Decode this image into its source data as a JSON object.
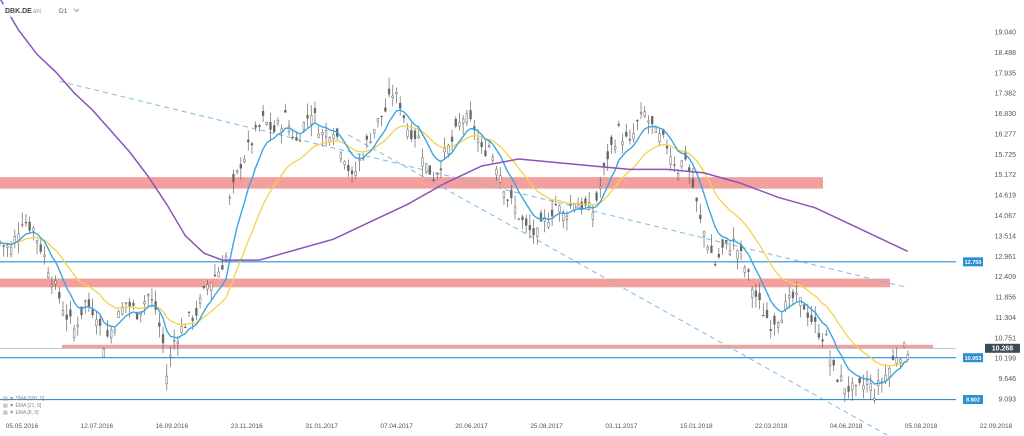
{
  "toolbar": {
    "symbol": "DBK.DE",
    "chart_type": "ahi",
    "timeframe": "D1",
    "chevron_icon": "chevron-down-icon"
  },
  "colors": {
    "candle": "#666666",
    "zone": "#ef7f7c",
    "level_line": "#2b8fd0",
    "channel_line": "#7bbbe6",
    "sma200": "#8a55b8",
    "ema21": "#f2d34a",
    "ema8": "#3aa6e0",
    "price_tag": "#3d4b55",
    "axis_text": "#555555"
  },
  "indicators": [
    {
      "label": "▤ ▼ SMA [200, 0]",
      "icon": "eye-icon"
    },
    {
      "label": "▤ ▼ EMA [21, 0]",
      "icon": "eye-icon"
    },
    {
      "label": "▤ ▼ EMA [8, 0]",
      "icon": "eye-icon"
    }
  ],
  "chart_data": {
    "type": "candlestick",
    "symbol": "DBK.DE",
    "timeframe": "D1",
    "y_ticks": [
      "19.040",
      "18.488",
      "17.935",
      "17.382",
      "16.830",
      "16.277",
      "15.725",
      "15.172",
      "14.619",
      "14.067",
      "13.514",
      "12.961",
      "12.409",
      "11.856",
      "11.304",
      "10.751",
      "10.199",
      "9.646",
      "9.093"
    ],
    "x_ticks": [
      "05.05.2016",
      "12.07.2016",
      "16.09.2016",
      "23.11.2016",
      "31.01.2017",
      "07.04.2017",
      "20.06.2017",
      "25.08.2017",
      "03.11.2017",
      "15.01.2018",
      "22.03.2018",
      "04.06.2018",
      "05.08.2018",
      "22.09.2018"
    ],
    "current_price": "10.268",
    "level_labels": [
      "12.750",
      "10.003",
      "8.802"
    ],
    "horizontal_levels": [
      12.75,
      10.0,
      8.8
    ],
    "resistance_zones": [
      [
        14.85,
        15.18
      ],
      [
        12.02,
        12.27
      ],
      [
        10.27,
        10.37
      ]
    ],
    "channel_lines": [
      {
        "from": [
          16,
          17.93
        ],
        "to": [
          245,
          12.01
        ]
      },
      {
        "from": [
          94,
          16.39
        ],
        "to": [
          245,
          7.45
        ]
      }
    ],
    "y_range": [
      8.5,
      19.4
    ],
    "x_index_range": [
      0,
      258
    ],
    "close_path": [
      [
        0,
        13.3
      ],
      [
        3,
        13.1
      ],
      [
        6,
        14.0
      ],
      [
        9,
        13.7
      ],
      [
        12,
        12.9
      ],
      [
        15,
        12.0
      ],
      [
        18,
        11.2
      ],
      [
        20,
        10.8
      ],
      [
        23,
        11.6
      ],
      [
        26,
        11.3
      ],
      [
        28,
        10.4
      ],
      [
        31,
        11.0
      ],
      [
        34,
        11.6
      ],
      [
        37,
        11.3
      ],
      [
        40,
        11.8
      ],
      [
        42,
        11.4
      ],
      [
        44,
        10.4
      ],
      [
        45,
        9.5
      ],
      [
        47,
        10.5
      ],
      [
        50,
        11.0
      ],
      [
        53,
        11.3
      ],
      [
        56,
        12.1
      ],
      [
        59,
        12.5
      ],
      [
        61,
        12.9
      ],
      [
        62,
        14.5
      ],
      [
        65,
        15.6
      ],
      [
        68,
        16.2
      ],
      [
        71,
        16.8
      ],
      [
        74,
        16.5
      ],
      [
        77,
        16.9
      ],
      [
        80,
        16.2
      ],
      [
        82,
        16.7
      ],
      [
        84,
        17.1
      ],
      [
        87,
        16.4
      ],
      [
        90,
        16.6
      ],
      [
        93,
        15.8
      ],
      [
        95,
        15.1
      ],
      [
        98,
        15.9
      ],
      [
        101,
        16.6
      ],
      [
        104,
        17.1
      ],
      [
        106,
        17.6
      ],
      [
        108,
        17.3
      ],
      [
        110,
        16.6
      ],
      [
        113,
        16.3
      ],
      [
        115,
        15.5
      ],
      [
        117,
        15.2
      ],
      [
        119,
        15.6
      ],
      [
        122,
        16.2
      ],
      [
        125,
        16.9
      ],
      [
        128,
        16.6
      ],
      [
        130,
        15.9
      ],
      [
        132,
        16.1
      ],
      [
        135,
        15.3
      ],
      [
        137,
        14.6
      ],
      [
        140,
        14.1
      ],
      [
        142,
        13.7
      ],
      [
        145,
        13.5
      ],
      [
        147,
        13.9
      ],
      [
        150,
        14.4
      ],
      [
        152,
        14.1
      ],
      [
        155,
        14.5
      ],
      [
        158,
        14.3
      ],
      [
        160,
        14.2
      ],
      [
        162,
        14.9
      ],
      [
        164,
        15.8
      ],
      [
        167,
        16.5
      ],
      [
        170,
        16.1
      ],
      [
        172,
        16.7
      ],
      [
        174,
        17.0
      ],
      [
        177,
        16.4
      ],
      [
        180,
        16.1
      ],
      [
        183,
        15.4
      ],
      [
        185,
        15.8
      ],
      [
        187,
        14.9
      ],
      [
        189,
        13.9
      ],
      [
        191,
        13.3
      ],
      [
        193,
        12.7
      ],
      [
        195,
        13.1
      ],
      [
        198,
        13.3
      ],
      [
        200,
        12.9
      ],
      [
        202,
        12.3
      ],
      [
        205,
        11.5
      ],
      [
        208,
        11.0
      ],
      [
        211,
        11.3
      ],
      [
        214,
        11.7
      ],
      [
        217,
        11.5
      ],
      [
        220,
        10.9
      ],
      [
        223,
        10.5
      ],
      [
        225,
        9.6
      ],
      [
        228,
        9.2
      ],
      [
        231,
        9.0
      ],
      [
        234,
        9.3
      ],
      [
        236,
        9.0
      ],
      [
        239,
        9.5
      ],
      [
        242,
        10.1
      ],
      [
        245,
        10.27
      ]
    ],
    "sma200": [
      [
        0,
        20.3
      ],
      [
        5,
        19.4
      ],
      [
        10,
        18.7
      ],
      [
        15,
        18.2
      ],
      [
        20,
        17.6
      ],
      [
        25,
        17.1
      ],
      [
        30,
        16.5
      ],
      [
        35,
        15.9
      ],
      [
        40,
        15.2
      ],
      [
        45,
        14.4
      ],
      [
        50,
        13.5
      ],
      [
        55,
        13.0
      ],
      [
        60,
        12.8
      ],
      [
        70,
        12.8
      ],
      [
        80,
        13.1
      ],
      [
        90,
        13.4
      ],
      [
        100,
        13.9
      ],
      [
        110,
        14.4
      ],
      [
        120,
        15.0
      ],
      [
        130,
        15.5
      ],
      [
        140,
        15.7
      ],
      [
        150,
        15.6
      ],
      [
        160,
        15.5
      ],
      [
        170,
        15.4
      ],
      [
        180,
        15.4
      ],
      [
        190,
        15.3
      ],
      [
        200,
        15.0
      ],
      [
        210,
        14.6
      ],
      [
        220,
        14.3
      ],
      [
        230,
        13.8
      ],
      [
        240,
        13.3
      ],
      [
        245,
        13.05
      ]
    ]
  }
}
